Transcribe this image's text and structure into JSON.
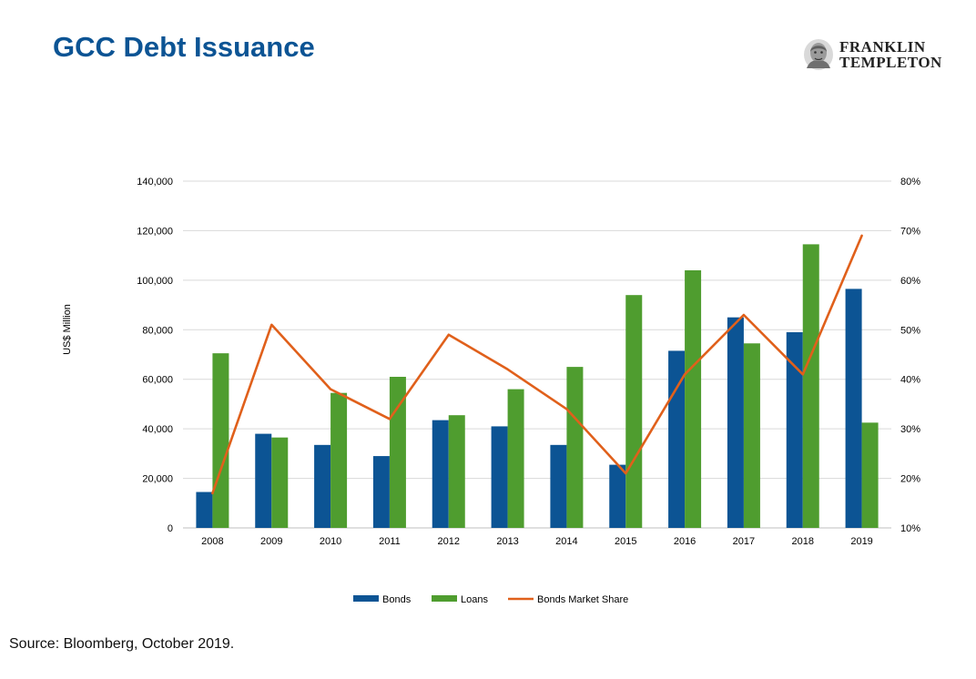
{
  "page": {
    "title": "GCC Debt Issuance",
    "source": "Source: Bloomberg, October 2019."
  },
  "logo": {
    "line1": "FRANKLIN",
    "line2": "TEMPLETON",
    "icon": "franklin-portrait-icon"
  },
  "colors": {
    "title": "#0c5494",
    "bonds": "#0c5494",
    "loans": "#4f9d2f",
    "share": "#e0601b",
    "grid": "#d9d9d9"
  },
  "chart_data": {
    "type": "bar",
    "categories": [
      "2008",
      "2009",
      "2010",
      "2011",
      "2012",
      "2013",
      "2014",
      "2015",
      "2016",
      "2017",
      "2018",
      "2019"
    ],
    "series": [
      {
        "name": "Bonds",
        "type": "bar",
        "axis": "left",
        "values": [
          14500,
          38000,
          33500,
          29000,
          43500,
          41000,
          33500,
          25500,
          71500,
          85000,
          79000,
          96500
        ]
      },
      {
        "name": "Loans",
        "type": "bar",
        "axis": "left",
        "values": [
          70500,
          36500,
          54500,
          61000,
          45500,
          56000,
          65000,
          94000,
          104000,
          74500,
          114500,
          42500
        ]
      },
      {
        "name": "Bonds Market Share",
        "type": "line",
        "axis": "right",
        "values": [
          0.17,
          0.51,
          0.38,
          0.32,
          0.49,
          0.42,
          0.34,
          0.21,
          0.41,
          0.53,
          0.41,
          0.69
        ]
      }
    ],
    "ylabel": "US$ Million",
    "ylim": [
      0,
      140000
    ],
    "yticks": [
      0,
      20000,
      40000,
      60000,
      80000,
      100000,
      120000,
      140000
    ],
    "ytick_labels": [
      "0",
      "20,000",
      "40,000",
      "60,000",
      "80,000",
      "100,000",
      "120,000",
      "140,000"
    ],
    "y2lim": [
      0.1,
      0.8
    ],
    "y2ticks": [
      0.1,
      0.2,
      0.3,
      0.4,
      0.5,
      0.6,
      0.7,
      0.8
    ],
    "y2tick_labels": [
      "10%",
      "20%",
      "30%",
      "40%",
      "50%",
      "60%",
      "70%",
      "80%"
    ],
    "grid": true,
    "legend": "bottom"
  }
}
